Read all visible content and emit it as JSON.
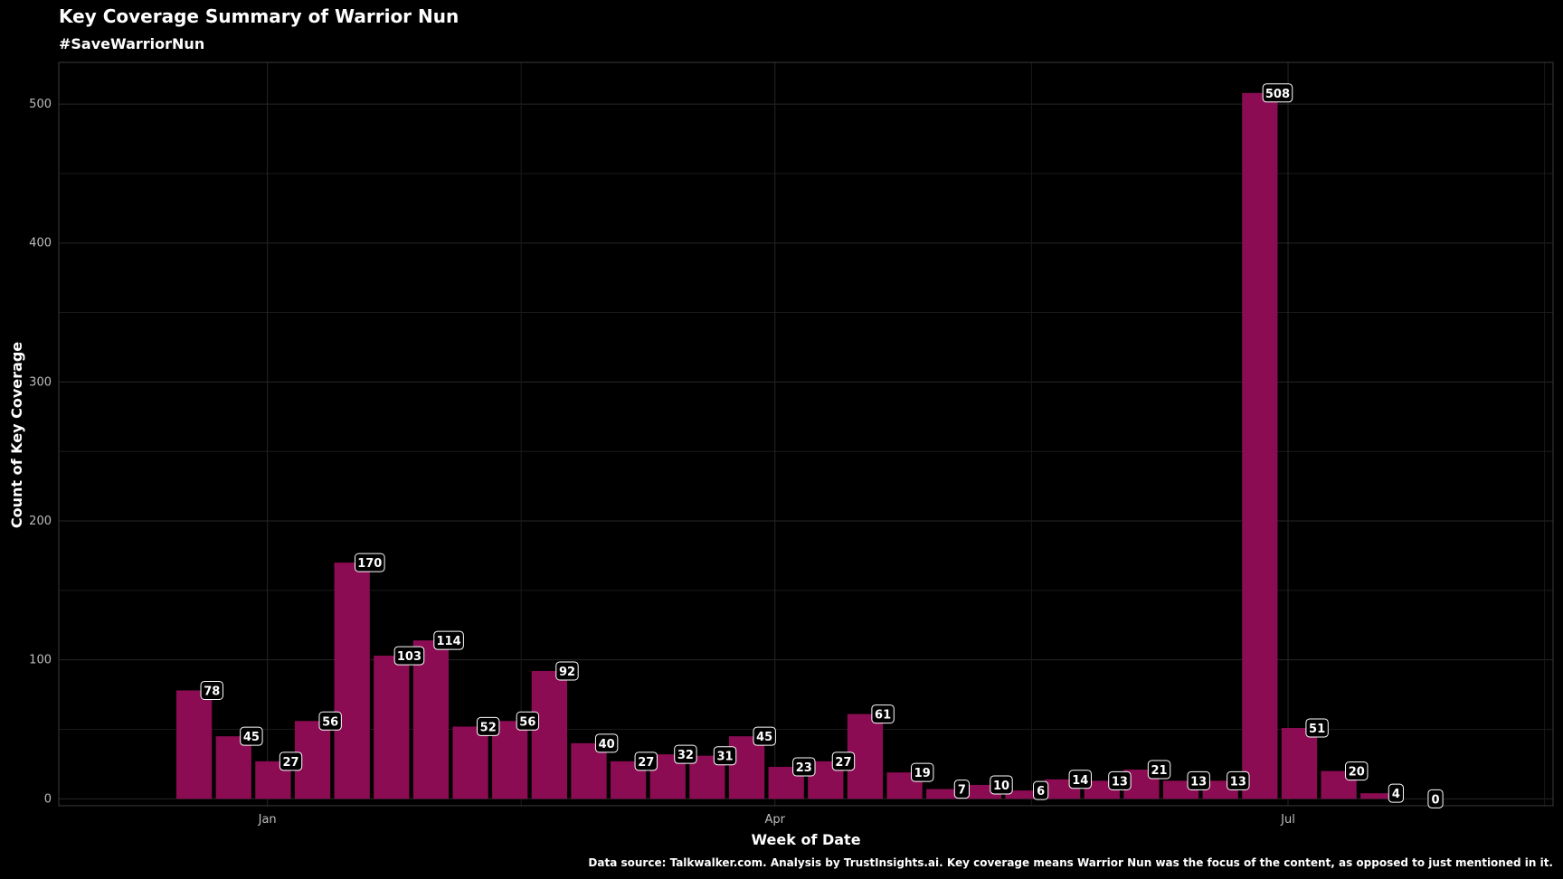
{
  "chart_data": {
    "type": "bar",
    "title": "Key Coverage Summary of Warrior Nun",
    "subtitle": "#SaveWarriorNun",
    "xlabel": "Week of Date",
    "ylabel": "Count of Key Coverage",
    "caption": "Data source: Talkwalker.com. Analysis by TrustInsights.ai. Key coverage means Warrior Nun was the focus of the content, as opposed to just mentioned in it.",
    "x_tick_labels": [
      "Jan",
      "Apr",
      "Jul"
    ],
    "y_tick_labels": [
      "0",
      "100",
      "200",
      "300",
      "400",
      "500"
    ],
    "ylim": [
      -5,
      530
    ],
    "grid": true,
    "bar_color": "#8b0c53",
    "background_color": "#000000",
    "series": [
      {
        "x": [
          "2022-12-19",
          "2022-12-26",
          "2023-01-02",
          "2023-01-09",
          "2023-01-16",
          "2023-01-23",
          "2023-01-30",
          "2023-02-06",
          "2023-02-13",
          "2023-02-20",
          "2023-02-27",
          "2023-03-06",
          "2023-03-13",
          "2023-03-20",
          "2023-03-27",
          "2023-04-03",
          "2023-04-10",
          "2023-04-17",
          "2023-04-24",
          "2023-05-01",
          "2023-05-08",
          "2023-05-15",
          "2023-05-22",
          "2023-05-29",
          "2023-06-05",
          "2023-06-12",
          "2023-06-19",
          "2023-06-26",
          "2023-07-03",
          "2023-07-10",
          "2023-07-17",
          "2023-07-24"
        ],
        "values": [
          78,
          45,
          27,
          56,
          170,
          103,
          114,
          52,
          56,
          92,
          40,
          27,
          32,
          31,
          45,
          23,
          27,
          61,
          19,
          7,
          10,
          6,
          14,
          13,
          21,
          13,
          13,
          508,
          51,
          20,
          4,
          0
        ],
        "labels": [
          "78",
          "45",
          "27",
          "56",
          "170",
          "103",
          "114",
          "52",
          "56",
          "92",
          "40",
          "27",
          "32",
          "31",
          "45",
          "23",
          "27",
          "61",
          "19",
          "7",
          "10",
          "6",
          "14",
          "13",
          "21",
          "13",
          "13",
          "508",
          "51",
          "20",
          "4",
          "0"
        ]
      }
    ]
  }
}
